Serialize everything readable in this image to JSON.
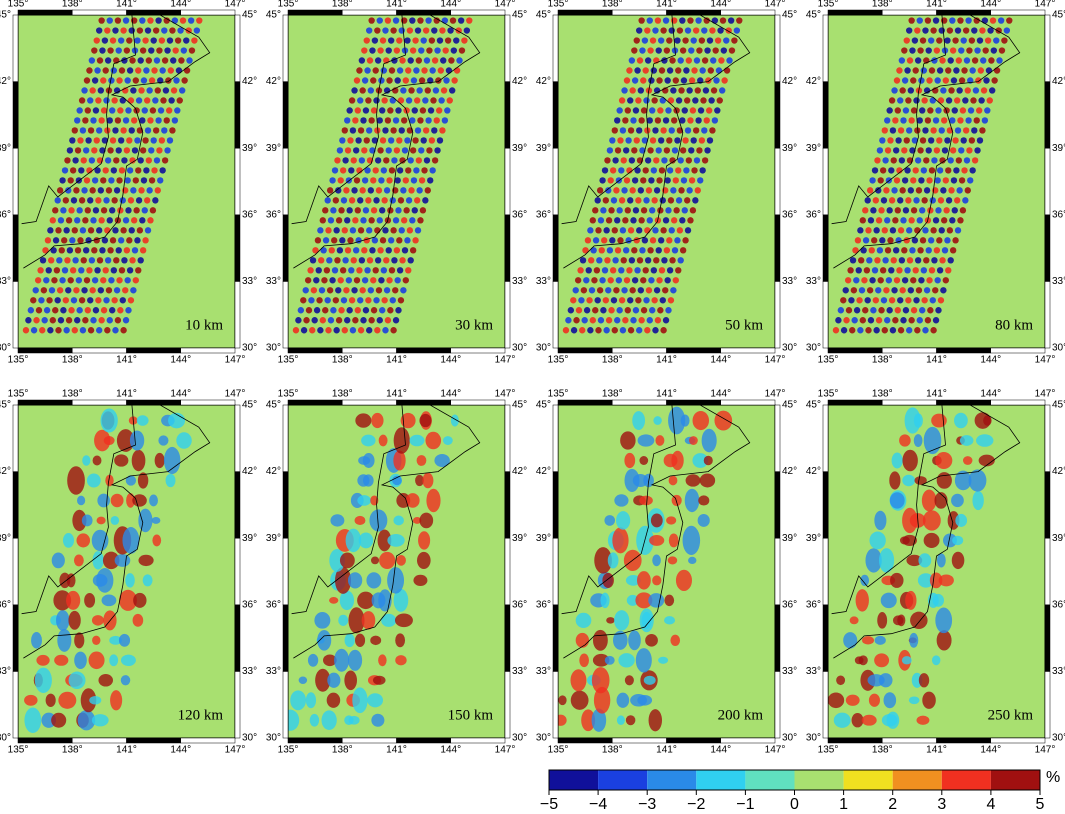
{
  "panels": [
    {
      "depth": "10 km"
    },
    {
      "depth": "30 km"
    },
    {
      "depth": "50 km"
    },
    {
      "depth": "80 km"
    },
    {
      "depth": "120 km"
    },
    {
      "depth": "150 km"
    },
    {
      "depth": "200 km"
    },
    {
      "depth": "250 km"
    }
  ],
  "lon_ticks": [
    {
      "value": 135,
      "label": "135°"
    },
    {
      "value": 138,
      "label": "138°"
    },
    {
      "value": 141,
      "label": "141°"
    },
    {
      "value": 144,
      "label": "144°"
    },
    {
      "value": 147,
      "label": "147°"
    }
  ],
  "lat_ticks": [
    {
      "value": 30,
      "label": "30°"
    },
    {
      "value": 33,
      "label": "33°"
    },
    {
      "value": 36,
      "label": "36°"
    },
    {
      "value": 39,
      "label": "39°"
    },
    {
      "value": 42,
      "label": "42°"
    },
    {
      "value": 45,
      "label": "45°"
    }
  ],
  "colorbar": {
    "unit": "%",
    "colors": [
      "#10109a",
      "#1a40e0",
      "#2a8ae8",
      "#30d0f0",
      "#60e0c0",
      "#a8e070",
      "#f0e020",
      "#f09020",
      "#f03020",
      "#a01010"
    ],
    "ticks": [
      {
        "value": -5,
        "label": "−5"
      },
      {
        "value": -4,
        "label": "−4"
      },
      {
        "value": -3,
        "label": "−3"
      },
      {
        "value": -2,
        "label": "−2"
      },
      {
        "value": -1,
        "label": "−1"
      },
      0,
      1,
      2,
      3,
      4,
      5
    ]
  }
}
